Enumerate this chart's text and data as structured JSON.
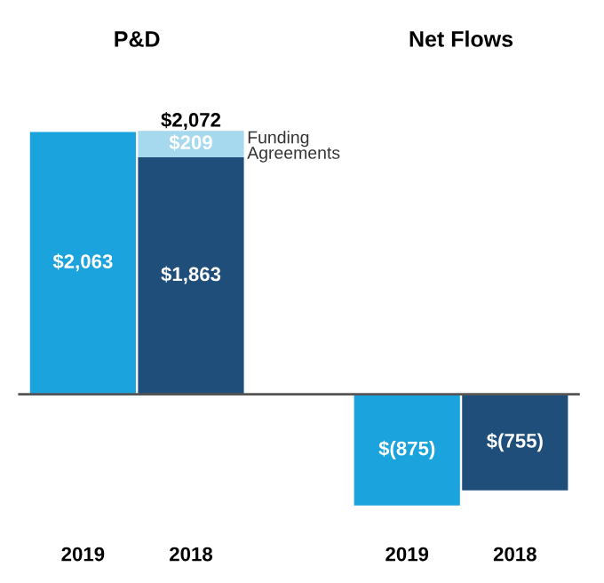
{
  "chart_data": {
    "type": "bar",
    "stacked": true,
    "categories": [
      "2019",
      "2018",
      null,
      "2019",
      "2018"
    ],
    "series": [
      {
        "colors": [
          "#1aa3dc",
          "#1f4e7a",
          null,
          "#1aa3dc",
          "#1f4e7a"
        ],
        "values": [
          2063,
          1863,
          null,
          -875,
          -755
        ],
        "value_labels": [
          "$2,063",
          "$1,863",
          null,
          "$(875)",
          "$(755)"
        ]
      },
      {
        "name": "Funding Agreements",
        "color": "#a6d9ee",
        "values": [
          null,
          209,
          null,
          null,
          null
        ],
        "value_labels": [
          null,
          "$209",
          null,
          null,
          null
        ]
      }
    ],
    "totals": [
      null,
      "$2,072",
      null,
      null,
      null
    ],
    "annotations": [
      "P&D",
      "Net Flows"
    ],
    "legend": false
  }
}
